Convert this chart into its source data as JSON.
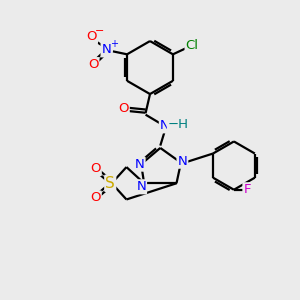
{
  "bg_color": "#ebebeb",
  "bond_color": "#000000",
  "bond_lw": 1.6,
  "atom_bg": "#ebebeb",
  "colors": {
    "Cl": "#008000",
    "N": "#0000ff",
    "O": "#ff0000",
    "S": "#ccaa00",
    "F": "#cc00cc",
    "H": "#008080",
    "C": "#000000"
  },
  "fontsize": 9.5
}
